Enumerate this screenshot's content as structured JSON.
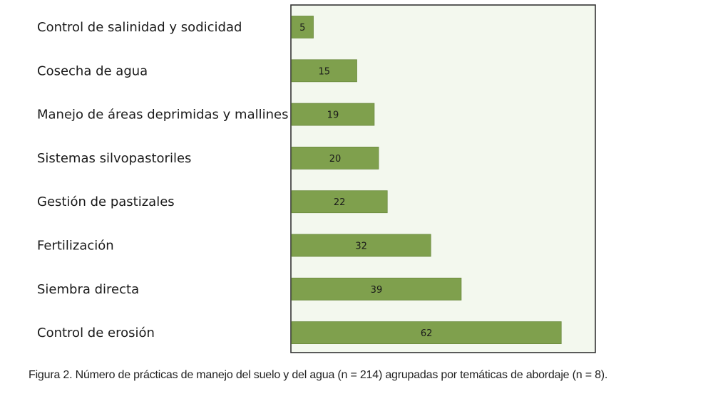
{
  "chart_data": {
    "type": "bar",
    "orientation": "horizontal",
    "categories": [
      "Control de salinidad y sodicidad",
      "Cosecha de agua",
      "Manejo de áreas deprimidas y mallines",
      "Sistemas silvopastoriles",
      "Gestión de pastizales",
      "Fertilización",
      "Siembra directa",
      "Control de erosión"
    ],
    "values": [
      5,
      15,
      19,
      20,
      22,
      32,
      39,
      62
    ],
    "xlim": [
      0,
      70
    ],
    "grid": false,
    "legend": "none",
    "colors": {
      "bar": "#7fa04d",
      "bar_border": "#6b8a3e",
      "plot_bg": "#f3f8ee",
      "frame": "#333333"
    }
  },
  "caption": "Figura 2. Número de prácticas de manejo del suelo y del agua (n = 214) agrupadas por temáticas de abordaje (n = 8)."
}
